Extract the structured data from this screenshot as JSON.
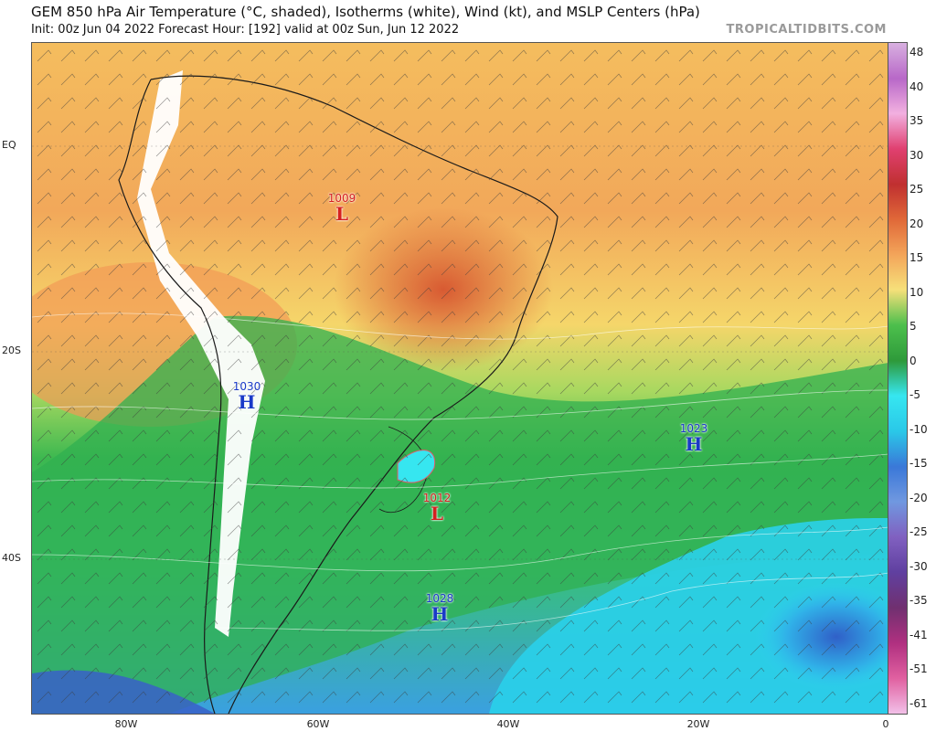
{
  "header": {
    "title": "GEM 850 hPa Air Temperature (°C, shaded), Isotherms (white), Wind (kt), and MSLP Centers (hPa)",
    "subtitle": "Init: 00z Jun 04 2022   Forecast Hour: [192]   valid at 00z Sun, Jun 12 2022",
    "brand": "TROPICALTIDBITS.COM"
  },
  "axes": {
    "lat_labels": [
      "EQ",
      "20S",
      "40S"
    ],
    "lon_labels": [
      "80W",
      "60W",
      "40W",
      "20W",
      "0"
    ]
  },
  "colorbar": {
    "ticks": [
      "48",
      "40",
      "35",
      "30",
      "25",
      "20",
      "15",
      "10",
      "5",
      "0",
      "-5",
      "-10",
      "-15",
      "-20",
      "-25",
      "-30",
      "-35",
      "-41",
      "-51",
      "-61"
    ],
    "colors": [
      "#d8b0e0",
      "#b868c8",
      "#f2b0e0",
      "#e04070",
      "#c03030",
      "#e06838",
      "#f3a55a",
      "#f6e07a",
      "#4cbf4c",
      "#2e9a3a",
      "#36e6f0",
      "#2ac8e8",
      "#3a78d8",
      "#7098e0",
      "#8060c0",
      "#6040a0",
      "#703070",
      "#b03080",
      "#e060a0",
      "#f2c0e8"
    ]
  },
  "pressure_centers": [
    {
      "type": "L",
      "value": "1009",
      "color": "#d62020"
    },
    {
      "type": "H",
      "value": "1030",
      "color": "#1a3ac8"
    },
    {
      "type": "H",
      "value": "1023",
      "color": "#1a3ac8"
    },
    {
      "type": "L",
      "value": "1012",
      "color": "#d62020"
    },
    {
      "type": "H",
      "value": "1028",
      "color": "#1a3ac8"
    }
  ]
}
